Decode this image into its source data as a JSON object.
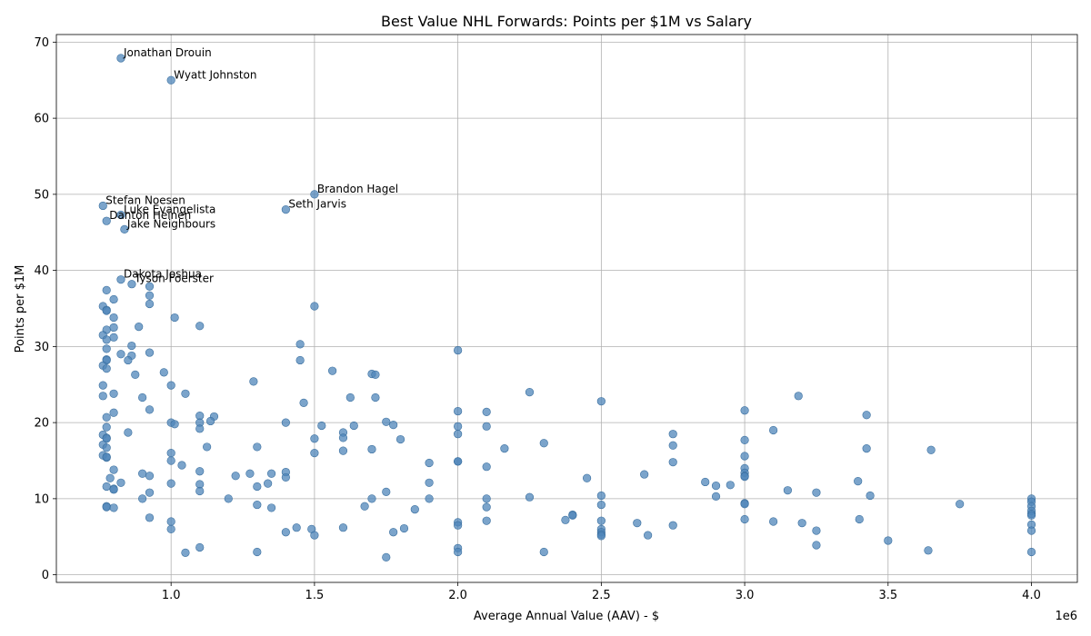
{
  "chart_data": {
    "type": "scatter",
    "title": "Best Value NHL Forwards: Points per $1M vs Salary",
    "xlabel": "Average Annual Value (AAV) - $",
    "ylabel": "Points per $1M",
    "x_scale_label": "1e6",
    "xlim": [
      600000,
      4160000
    ],
    "ylim": [
      -1,
      71
    ],
    "xticks": [
      1000000,
      1500000,
      2000000,
      2500000,
      3000000,
      3500000,
      4000000
    ],
    "xtick_labels": [
      "1.0",
      "1.5",
      "2.0",
      "2.5",
      "3.0",
      "3.5",
      "4.0"
    ],
    "yticks": [
      0,
      10,
      20,
      30,
      40,
      50,
      60,
      70
    ],
    "ytick_labels": [
      "0",
      "10",
      "20",
      "30",
      "40",
      "50",
      "60",
      "70"
    ],
    "grid": true,
    "color": "#4f86b9",
    "annotations": [
      {
        "name": "Jonathan Drouin",
        "x": 825000,
        "y": 67.9
      },
      {
        "name": "Wyatt Johnston",
        "x": 1000000,
        "y": 65.0
      },
      {
        "name": "Brandon Hagel",
        "x": 1500000,
        "y": 50.0
      },
      {
        "name": "Seth Jarvis",
        "x": 1400000,
        "y": 48.0
      },
      {
        "name": "Stefan Noesen",
        "x": 762500,
        "y": 48.5
      },
      {
        "name": "Luke Evangelista",
        "x": 825000,
        "y": 47.3
      },
      {
        "name": "Danton Heinen",
        "x": 775000,
        "y": 46.5
      },
      {
        "name": "Jake Neighbours",
        "x": 837500,
        "y": 45.4
      },
      {
        "name": "Dakota Joshua",
        "x": 825000,
        "y": 38.8
      },
      {
        "name": "Tyson Foerster",
        "x": 863000,
        "y": 38.2
      }
    ],
    "points": [
      [
        825000,
        67.9
      ],
      [
        1000000,
        65.0
      ],
      [
        1500000,
        50.0
      ],
      [
        1400000,
        48.0
      ],
      [
        762500,
        48.5
      ],
      [
        825000,
        47.3
      ],
      [
        775000,
        46.5
      ],
      [
        837500,
        45.4
      ],
      [
        825000,
        38.8
      ],
      [
        863000,
        38.2
      ],
      [
        925000,
        37.9
      ],
      [
        775000,
        37.4
      ],
      [
        925000,
        36.7
      ],
      [
        800000,
        36.2
      ],
      [
        925000,
        35.6
      ],
      [
        762500,
        35.3
      ],
      [
        1500000,
        35.3
      ],
      [
        775000,
        34.8
      ],
      [
        775000,
        34.7
      ],
      [
        1012500,
        33.8
      ],
      [
        800000,
        33.8
      ],
      [
        1100000,
        32.7
      ],
      [
        887500,
        32.6
      ],
      [
        800000,
        32.5
      ],
      [
        775000,
        32.2
      ],
      [
        762500,
        31.5
      ],
      [
        800000,
        31.2
      ],
      [
        775000,
        30.9
      ],
      [
        1450000,
        30.3
      ],
      [
        862500,
        30.1
      ],
      [
        775000,
        29.7
      ],
      [
        2000000,
        29.5
      ],
      [
        925000,
        29.2
      ],
      [
        825000,
        29.0
      ],
      [
        862500,
        28.8
      ],
      [
        775000,
        28.3
      ],
      [
        775000,
        28.2
      ],
      [
        1450000,
        28.2
      ],
      [
        850000,
        28.2
      ],
      [
        762500,
        27.5
      ],
      [
        775000,
        27.1
      ],
      [
        1562500,
        26.8
      ],
      [
        975000,
        26.6
      ],
      [
        875000,
        26.3
      ],
      [
        1700000,
        26.4
      ],
      [
        1712500,
        26.3
      ],
      [
        1287500,
        25.4
      ],
      [
        762500,
        24.9
      ],
      [
        1000000,
        24.9
      ],
      [
        2250000,
        24.0
      ],
      [
        800000,
        23.8
      ],
      [
        1050000,
        23.8
      ],
      [
        762500,
        23.5
      ],
      [
        3187500,
        23.5
      ],
      [
        900000,
        23.3
      ],
      [
        1625000,
        23.3
      ],
      [
        1712500,
        23.3
      ],
      [
        2500000,
        22.8
      ],
      [
        1462500,
        22.6
      ],
      [
        925000,
        21.7
      ],
      [
        2000000,
        21.5
      ],
      [
        3000000,
        21.6
      ],
      [
        2100000,
        21.4
      ],
      [
        800000,
        21.3
      ],
      [
        3425000,
        21.0
      ],
      [
        1100000,
        20.9
      ],
      [
        1150000,
        20.8
      ],
      [
        775000,
        20.7
      ],
      [
        1137500,
        20.2
      ],
      [
        1000000,
        20.0
      ],
      [
        1100000,
        20.0
      ],
      [
        1750000,
        20.1
      ],
      [
        1400000,
        20.0
      ],
      [
        1012500,
        19.8
      ],
      [
        1775000,
        19.7
      ],
      [
        1525000,
        19.6
      ],
      [
        1637500,
        19.6
      ],
      [
        775000,
        19.4
      ],
      [
        2000000,
        19.5
      ],
      [
        2100000,
        19.5
      ],
      [
        1100000,
        19.2
      ],
      [
        3100000,
        19.0
      ],
      [
        850000,
        18.7
      ],
      [
        1600000,
        18.7
      ],
      [
        2000000,
        18.5
      ],
      [
        762500,
        18.4
      ],
      [
        2750000,
        18.5
      ],
      [
        775000,
        18.0
      ],
      [
        775000,
        17.9
      ],
      [
        1600000,
        18.0
      ],
      [
        1500000,
        17.9
      ],
      [
        1800000,
        17.8
      ],
      [
        3000000,
        17.7
      ],
      [
        2300000,
        17.3
      ],
      [
        2750000,
        17.0
      ],
      [
        762500,
        17.1
      ],
      [
        1300000,
        16.8
      ],
      [
        1125000,
        16.8
      ],
      [
        775000,
        16.7
      ],
      [
        2162500,
        16.6
      ],
      [
        1700000,
        16.5
      ],
      [
        3425000,
        16.6
      ],
      [
        3650000,
        16.4
      ],
      [
        1600000,
        16.3
      ],
      [
        1000000,
        16.0
      ],
      [
        1500000,
        16.0
      ],
      [
        762500,
        15.7
      ],
      [
        775000,
        15.4
      ],
      [
        3000000,
        15.6
      ],
      [
        775000,
        15.5
      ],
      [
        1000000,
        15.0
      ],
      [
        2000000,
        14.9
      ],
      [
        2000000,
        14.9
      ],
      [
        1900000,
        14.7
      ],
      [
        2750000,
        14.8
      ],
      [
        1037500,
        14.4
      ],
      [
        2100000,
        14.2
      ],
      [
        800000,
        13.8
      ],
      [
        1100000,
        13.6
      ],
      [
        3000000,
        14.0
      ],
      [
        1400000,
        13.5
      ],
      [
        900000,
        13.3
      ],
      [
        1350000,
        13.3
      ],
      [
        1275000,
        13.3
      ],
      [
        3000000,
        13.4
      ],
      [
        925000,
        13.0
      ],
      [
        1225000,
        13.0
      ],
      [
        2650000,
        13.2
      ],
      [
        3000000,
        13.0
      ],
      [
        3000000,
        12.9
      ],
      [
        787500,
        12.7
      ],
      [
        1400000,
        12.8
      ],
      [
        2450000,
        12.7
      ],
      [
        2862500,
        12.2
      ],
      [
        3395000,
        12.3
      ],
      [
        1900000,
        12.1
      ],
      [
        825000,
        12.1
      ],
      [
        1000000,
        12.0
      ],
      [
        1337500,
        12.0
      ],
      [
        1100000,
        11.9
      ],
      [
        2950000,
        11.8
      ],
      [
        2900000,
        11.7
      ],
      [
        1300000,
        11.6
      ],
      [
        775000,
        11.6
      ],
      [
        800000,
        11.3
      ],
      [
        800000,
        11.2
      ],
      [
        3150000,
        11.1
      ],
      [
        1100000,
        11.0
      ],
      [
        1750000,
        10.9
      ],
      [
        925000,
        10.8
      ],
      [
        3250000,
        10.8
      ],
      [
        2500000,
        10.4
      ],
      [
        3437500,
        10.4
      ],
      [
        2900000,
        10.3
      ],
      [
        2250000,
        10.2
      ],
      [
        4000000,
        10.0
      ],
      [
        900000,
        10.0
      ],
      [
        1200000,
        10.0
      ],
      [
        1700000,
        10.0
      ],
      [
        1900000,
        10.0
      ],
      [
        2100000,
        10.0
      ],
      [
        4000000,
        9.6
      ],
      [
        3750000,
        9.3
      ],
      [
        3000000,
        9.4
      ],
      [
        3000000,
        9.3
      ],
      [
        1300000,
        9.2
      ],
      [
        2500000,
        9.2
      ],
      [
        4000000,
        9.0
      ],
      [
        775000,
        9.0
      ],
      [
        775000,
        8.9
      ],
      [
        1675000,
        9.0
      ],
      [
        1350000,
        8.8
      ],
      [
        2100000,
        8.9
      ],
      [
        800000,
        8.8
      ],
      [
        1850000,
        8.6
      ],
      [
        4000000,
        8.4
      ],
      [
        4000000,
        8.0
      ],
      [
        4000000,
        7.8
      ],
      [
        2400000,
        7.9
      ],
      [
        2400000,
        7.8
      ],
      [
        925000,
        7.5
      ],
      [
        3000000,
        7.3
      ],
      [
        3400000,
        7.3
      ],
      [
        2375000,
        7.2
      ],
      [
        2500000,
        7.1
      ],
      [
        2100000,
        7.1
      ],
      [
        3100000,
        7.0
      ],
      [
        1000000,
        7.0
      ],
      [
        2000000,
        6.9
      ],
      [
        2000000,
        6.5
      ],
      [
        3200000,
        6.8
      ],
      [
        2625000,
        6.8
      ],
      [
        4000000,
        6.6
      ],
      [
        2750000,
        6.5
      ],
      [
        1437500,
        6.2
      ],
      [
        1600000,
        6.2
      ],
      [
        1812500,
        6.1
      ],
      [
        1000000,
        6.0
      ],
      [
        1400000,
        5.6
      ],
      [
        1490000,
        6.0
      ],
      [
        2500000,
        6.0
      ],
      [
        2500000,
        5.6
      ],
      [
        3250000,
        5.8
      ],
      [
        4000000,
        5.8
      ],
      [
        1775000,
        5.6
      ],
      [
        2500000,
        5.3
      ],
      [
        2500000,
        5.1
      ],
      [
        1500000,
        5.2
      ],
      [
        2662500,
        5.2
      ],
      [
        3500000,
        4.5
      ],
      [
        3250000,
        3.9
      ],
      [
        1100000,
        3.6
      ],
      [
        2000000,
        3.5
      ],
      [
        3640000,
        3.2
      ],
      [
        2000000,
        3.0
      ],
      [
        1300000,
        3.0
      ],
      [
        2300000,
        3.0
      ],
      [
        4000000,
        3.0
      ],
      [
        1050000,
        2.9
      ],
      [
        1750000,
        2.3
      ]
    ]
  }
}
